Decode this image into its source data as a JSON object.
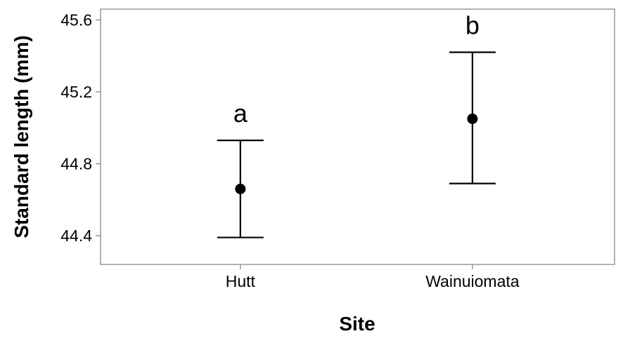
{
  "chart_data": {
    "type": "scatter",
    "xlabel": "Site",
    "ylabel": "Standard length (mm)",
    "categories": [
      "Hutt",
      "Wainuiomata"
    ],
    "means": [
      44.66,
      45.05
    ],
    "error_low": [
      44.39,
      44.69
    ],
    "error_high": [
      44.93,
      45.42
    ],
    "significance_labels": [
      "a",
      "b"
    ],
    "ylim": [
      44.24,
      45.66
    ],
    "yticks": [
      44.4,
      44.8,
      45.2,
      45.6
    ],
    "ytick_labels": [
      "44.4",
      "44.8",
      "45.2",
      "45.6"
    ],
    "grid": false,
    "legend": "none",
    "colors": {
      "marker": "#000000",
      "frame": "#7f7f7f",
      "background": "#ffffff"
    }
  }
}
